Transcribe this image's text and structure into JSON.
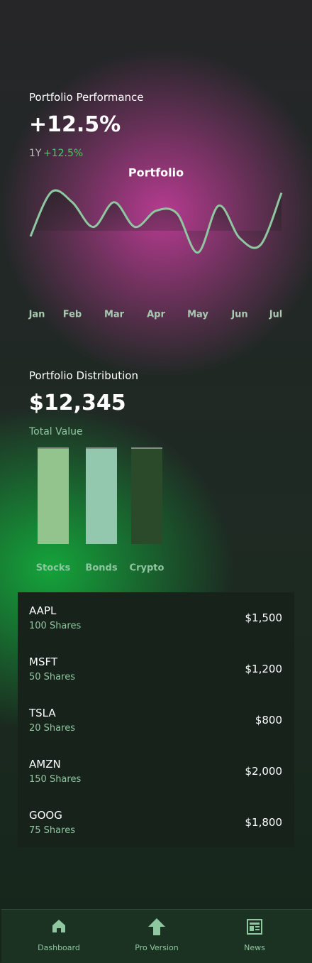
{
  "performance": {
    "label": "Portfolio Performance",
    "value": "+12.5%",
    "period": "1Y",
    "change": "+12.5%"
  },
  "chart_data": [
    {
      "type": "line",
      "title": "Portfolio",
      "categories": [
        "Jan",
        null,
        "Feb",
        null,
        "Mar",
        null,
        "Apr",
        null,
        "May",
        null,
        "Jun",
        null,
        "Jul"
      ],
      "values": [
        31,
        83,
        71,
        42,
        71,
        42,
        61,
        58,
        12,
        67,
        29,
        21,
        82
      ],
      "color": "#8fc7a0",
      "ylim": [
        0,
        100
      ]
    },
    {
      "type": "bar",
      "categories": [
        "Stocks",
        "Bonds",
        "Crypto"
      ],
      "values": [
        100,
        100,
        100
      ],
      "colors": [
        "#93c48e",
        "#93c8ae",
        "#2a4a2a"
      ],
      "ylim": [
        0,
        100
      ]
    }
  ],
  "distribution": {
    "label": "Portfolio Distribution",
    "value": "$12,345",
    "sublabel": "Total Value"
  },
  "holdings": [
    {
      "symbol": "AAPL",
      "shares": "100 Shares",
      "value": "$1,500"
    },
    {
      "symbol": "MSFT",
      "shares": "50 Shares",
      "value": "$1,200"
    },
    {
      "symbol": "TSLA",
      "shares": "20 Shares",
      "value": "$800"
    },
    {
      "symbol": "AMZN",
      "shares": "150 Shares",
      "value": "$2,000"
    },
    {
      "symbol": "GOOG",
      "shares": "75 Shares",
      "value": "$1,800"
    }
  ],
  "nav": [
    "Dashboard",
    "Pro Version",
    "News"
  ]
}
